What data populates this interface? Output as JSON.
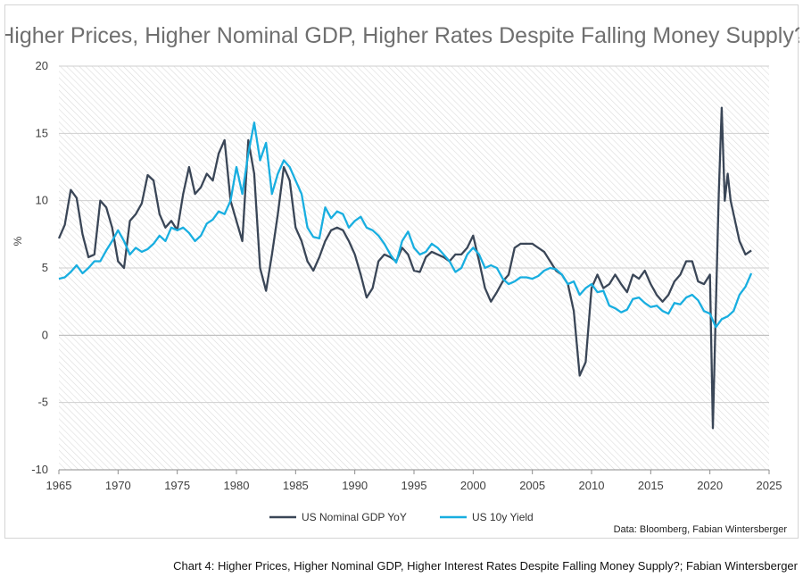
{
  "chart_data": {
    "type": "line",
    "title": "Higher Prices, Higher Nominal GDP, Higher Rates Despite Falling Money Supply?",
    "xlabel": "",
    "ylabel": "%",
    "xlim": [
      1965,
      2025
    ],
    "ylim": [
      -10,
      20
    ],
    "x_ticks": [
      1965,
      1970,
      1975,
      1980,
      1985,
      1990,
      1995,
      2000,
      2005,
      2010,
      2015,
      2020,
      2025
    ],
    "y_ticks": [
      -10,
      -5,
      0,
      5,
      10,
      15,
      20
    ],
    "grid": "horizontal",
    "legend_position": "bottom",
    "source": "Data: Bloomberg, Fabian Wintersberger",
    "series": [
      {
        "name": "US Nominal GDP YoY",
        "color": "#3a4657",
        "x": [
          1965.0,
          1965.5,
          1966.0,
          1966.5,
          1967.0,
          1967.5,
          1968.0,
          1968.5,
          1969.0,
          1969.5,
          1970.0,
          1970.5,
          1971.0,
          1971.5,
          1972.0,
          1972.5,
          1973.0,
          1973.5,
          1974.0,
          1974.5,
          1975.0,
          1975.5,
          1976.0,
          1976.5,
          1977.0,
          1977.5,
          1978.0,
          1978.5,
          1979.0,
          1979.5,
          1980.0,
          1980.5,
          1981.0,
          1981.5,
          1982.0,
          1982.5,
          1983.0,
          1983.5,
          1984.0,
          1984.5,
          1985.0,
          1985.5,
          1986.0,
          1986.5,
          1987.0,
          1987.5,
          1988.0,
          1988.5,
          1989.0,
          1989.5,
          1990.0,
          1990.5,
          1991.0,
          1991.5,
          1992.0,
          1992.5,
          1993.0,
          1993.5,
          1994.0,
          1994.5,
          1995.0,
          1995.5,
          1996.0,
          1996.5,
          1997.0,
          1997.5,
          1998.0,
          1998.5,
          1999.0,
          1999.5,
          2000.0,
          2000.5,
          2001.0,
          2001.5,
          2002.0,
          2002.5,
          2003.0,
          2003.5,
          2004.0,
          2004.5,
          2005.0,
          2005.5,
          2006.0,
          2006.5,
          2007.0,
          2007.5,
          2008.0,
          2008.5,
          2009.0,
          2009.5,
          2010.0,
          2010.5,
          2011.0,
          2011.5,
          2012.0,
          2012.5,
          2013.0,
          2013.5,
          2014.0,
          2014.5,
          2015.0,
          2015.5,
          2016.0,
          2016.5,
          2017.0,
          2017.5,
          2018.0,
          2018.5,
          2019.0,
          2019.5,
          2020.0,
          2020.25,
          2020.5,
          2020.75,
          2021.0,
          2021.25,
          2021.5,
          2021.75,
          2022.0,
          2022.5,
          2023.0,
          2023.5
        ],
        "values": [
          7.2,
          8.2,
          10.8,
          10.2,
          7.5,
          5.8,
          6.0,
          10.0,
          9.5,
          8.0,
          5.5,
          5.0,
          8.5,
          9.0,
          9.8,
          11.9,
          11.5,
          9.0,
          8.0,
          8.5,
          7.8,
          10.5,
          12.5,
          10.5,
          11.0,
          12.0,
          11.5,
          13.5,
          14.5,
          10.0,
          8.5,
          7.0,
          14.5,
          12.0,
          5.0,
          3.3,
          6.0,
          9.0,
          12.5,
          11.5,
          8.0,
          7.0,
          5.5,
          4.8,
          5.8,
          7.0,
          7.8,
          8.0,
          7.8,
          7.0,
          6.0,
          4.5,
          2.8,
          3.5,
          5.5,
          6.0,
          5.8,
          5.5,
          6.5,
          6.0,
          4.8,
          4.7,
          5.8,
          6.2,
          6.0,
          5.8,
          5.5,
          6.0,
          6.0,
          6.5,
          7.4,
          5.5,
          3.5,
          2.5,
          3.2,
          4.0,
          4.5,
          6.5,
          6.8,
          6.8,
          6.8,
          6.5,
          6.2,
          5.5,
          4.8,
          4.5,
          3.8,
          1.8,
          -3.0,
          -2.0,
          3.5,
          4.5,
          3.5,
          3.8,
          4.5,
          3.8,
          3.2,
          4.5,
          4.2,
          4.8,
          3.8,
          3.0,
          2.5,
          3.0,
          4.0,
          4.5,
          5.5,
          5.5,
          4.0,
          3.8,
          4.5,
          -6.9,
          2.0,
          10.5,
          16.9,
          10.0,
          12.0,
          10.0,
          9.0,
          7.0,
          6.0,
          6.3
        ]
      },
      {
        "name": "US 10y Yield",
        "color": "#18aee0",
        "x": [
          1965.0,
          1965.5,
          1966.0,
          1966.5,
          1967.0,
          1967.5,
          1968.0,
          1968.5,
          1969.0,
          1969.5,
          1970.0,
          1970.5,
          1971.0,
          1971.5,
          1972.0,
          1972.5,
          1973.0,
          1973.5,
          1974.0,
          1974.5,
          1975.0,
          1975.5,
          1976.0,
          1976.5,
          1977.0,
          1977.5,
          1978.0,
          1978.5,
          1979.0,
          1979.5,
          1980.0,
          1980.5,
          1981.0,
          1981.5,
          1982.0,
          1982.5,
          1983.0,
          1983.5,
          1984.0,
          1984.5,
          1985.0,
          1985.5,
          1986.0,
          1986.5,
          1987.0,
          1987.5,
          1988.0,
          1988.5,
          1989.0,
          1989.5,
          1990.0,
          1990.5,
          1991.0,
          1991.5,
          1992.0,
          1992.5,
          1993.0,
          1993.5,
          1994.0,
          1994.5,
          1995.0,
          1995.5,
          1996.0,
          1996.5,
          1997.0,
          1997.5,
          1998.0,
          1998.5,
          1999.0,
          1999.5,
          2000.0,
          2000.5,
          2001.0,
          2001.5,
          2002.0,
          2002.5,
          2003.0,
          2003.5,
          2004.0,
          2004.5,
          2005.0,
          2005.5,
          2006.0,
          2006.5,
          2007.0,
          2007.5,
          2008.0,
          2008.5,
          2009.0,
          2009.5,
          2010.0,
          2010.5,
          2011.0,
          2011.5,
          2012.0,
          2012.5,
          2013.0,
          2013.5,
          2014.0,
          2014.5,
          2015.0,
          2015.5,
          2016.0,
          2016.5,
          2017.0,
          2017.5,
          2018.0,
          2018.5,
          2019.0,
          2019.5,
          2020.0,
          2020.5,
          2021.0,
          2021.5,
          2022.0,
          2022.5,
          2023.0,
          2023.5
        ],
        "values": [
          4.2,
          4.3,
          4.7,
          5.2,
          4.6,
          5.0,
          5.5,
          5.5,
          6.3,
          7.0,
          7.8,
          7.0,
          6.0,
          6.5,
          6.2,
          6.4,
          6.8,
          7.4,
          7.0,
          8.0,
          7.8,
          8.0,
          7.6,
          7.0,
          7.4,
          8.3,
          8.6,
          9.2,
          9.0,
          10.0,
          12.5,
          10.5,
          13.5,
          15.8,
          13.0,
          14.3,
          10.5,
          12.0,
          13.0,
          12.5,
          11.5,
          10.5,
          8.0,
          7.3,
          7.2,
          9.5,
          8.7,
          9.2,
          9.0,
          8.0,
          8.5,
          8.8,
          8.0,
          7.8,
          7.4,
          6.8,
          6.0,
          5.4,
          7.0,
          7.7,
          6.5,
          6.0,
          6.2,
          6.8,
          6.5,
          6.0,
          5.5,
          4.7,
          5.0,
          6.0,
          6.5,
          6.0,
          5.0,
          5.2,
          5.0,
          4.2,
          3.8,
          4.0,
          4.3,
          4.3,
          4.2,
          4.4,
          4.8,
          5.0,
          4.9,
          4.5,
          3.8,
          4.0,
          3.0,
          3.5,
          3.8,
          3.2,
          3.3,
          2.2,
          2.0,
          1.7,
          1.9,
          2.7,
          2.8,
          2.4,
          2.1,
          2.2,
          1.8,
          1.6,
          2.4,
          2.3,
          2.8,
          3.0,
          2.6,
          1.8,
          1.6,
          0.6,
          1.2,
          1.4,
          1.8,
          3.0,
          3.6,
          4.6
        ]
      }
    ]
  },
  "caption": "Chart 4: Higher Prices, Higher Nominal GDP, Higher Interest Rates Despite Falling Money Supply?; Fabian Wintersberger"
}
